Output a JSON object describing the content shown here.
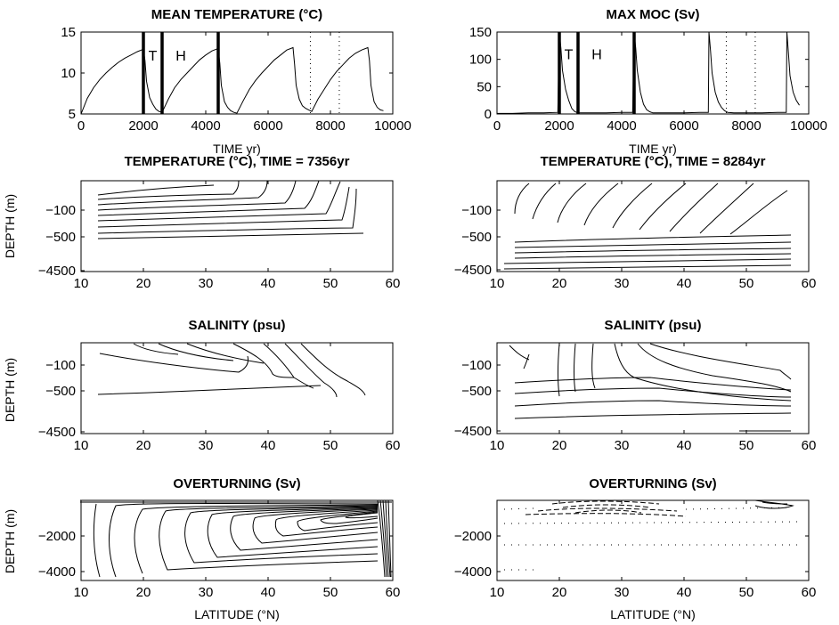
{
  "figure": {
    "colors": {
      "ink": "#000000",
      "background": "#ffffff"
    }
  },
  "chart_data": [
    {
      "id": "mean_temperature",
      "type": "line",
      "title": "MEAN TEMPERATURE (°C)",
      "xlabel": "TIME yr)",
      "ylabel": "",
      "xlim": [
        0,
        10000
      ],
      "ylim": [
        5,
        15
      ],
      "xticks": [
        0,
        2000,
        4000,
        6000,
        8000,
        10000
      ],
      "yticks": [
        5,
        10,
        15
      ],
      "grid": false,
      "series": [
        {
          "x": [
            0,
            200,
            400,
            600,
            800,
            1000,
            1200,
            1400,
            1600,
            1800,
            2000,
            2050,
            2100,
            2200,
            2300,
            2400,
            2500,
            2600,
            2800,
            3000,
            3200,
            3400,
            3600,
            3800,
            4000,
            4200,
            4400,
            4450,
            4500,
            4600,
            4700,
            4800,
            4900,
            5000,
            5200,
            5400,
            5600,
            5800,
            6000,
            6200,
            6400,
            6600,
            6800,
            6850,
            6900,
            7000,
            7100,
            7200,
            7300,
            7400,
            7600,
            7800,
            8000,
            8200,
            8400,
            8600,
            8800,
            9000,
            9200,
            9250,
            9300,
            9400,
            9500,
            9600,
            9700
          ],
          "values": [
            5.0,
            6.9,
            8.2,
            9.2,
            10.0,
            10.7,
            11.3,
            11.8,
            12.2,
            12.6,
            12.9,
            11.5,
            9.0,
            7.0,
            6.2,
            5.6,
            5.3,
            5.2,
            6.8,
            8.2,
            9.2,
            10.0,
            10.8,
            11.6,
            12.2,
            12.7,
            13.0,
            11.2,
            8.5,
            6.5,
            5.8,
            5.4,
            5.2,
            5.1,
            6.6,
            8.0,
            9.1,
            10.0,
            10.8,
            11.6,
            12.2,
            12.8,
            13.1,
            11.0,
            8.5,
            6.8,
            6.0,
            5.7,
            5.5,
            5.3,
            6.8,
            8.0,
            9.2,
            10.2,
            11.0,
            11.8,
            12.4,
            12.8,
            13.1,
            11.5,
            8.5,
            6.5,
            5.8,
            5.5,
            5.4
          ]
        }
      ],
      "markers": [
        {
          "x": 2000,
          "style": "thick"
        },
        {
          "x": 2600,
          "style": "thick"
        },
        {
          "x": 4400,
          "style": "thick"
        },
        {
          "x": 7356,
          "style": "dotted"
        },
        {
          "x": 8284,
          "style": "dotted"
        }
      ],
      "annotations": [
        {
          "text": "T",
          "x": 2300,
          "y": 12.2
        },
        {
          "text": "H",
          "x": 3200,
          "y": 12.2
        }
      ]
    },
    {
      "id": "max_moc",
      "type": "line",
      "title": "MAX MOC (Sv)",
      "xlabel": "TIME yr)",
      "ylabel": "",
      "xlim": [
        0,
        10000
      ],
      "ylim": [
        0,
        150
      ],
      "xticks": [
        0,
        2000,
        4000,
        6000,
        8000,
        10000
      ],
      "yticks": [
        0,
        50,
        100,
        150
      ],
      "grid": false,
      "series": [
        {
          "x": [
            0,
            500,
            1000,
            1500,
            1950,
            2000,
            2050,
            2100,
            2200,
            2300,
            2400,
            2500,
            2600,
            3000,
            3500,
            4000,
            4350,
            4400,
            4450,
            4500,
            4600,
            4700,
            4800,
            4900,
            5000,
            5500,
            6000,
            6500,
            6780,
            6800,
            6850,
            6900,
            7000,
            7100,
            7200,
            7300,
            7400,
            7600,
            8000,
            8500,
            9000,
            9280,
            9300,
            9350,
            9400,
            9500,
            9600,
            9700
          ],
          "values": [
            1,
            1,
            2,
            2,
            3,
            150,
            120,
            80,
            45,
            25,
            10,
            4,
            2,
            2,
            2,
            3,
            3,
            150,
            120,
            80,
            40,
            18,
            8,
            4,
            2,
            2,
            2,
            3,
            3,
            150,
            115,
            75,
            40,
            22,
            12,
            6,
            3,
            2,
            2,
            2,
            3,
            3,
            150,
            110,
            70,
            40,
            25,
            16
          ]
        }
      ],
      "markers": [
        {
          "x": 2000,
          "style": "thick"
        },
        {
          "x": 2600,
          "style": "thick"
        },
        {
          "x": 4400,
          "style": "thick"
        },
        {
          "x": 7356,
          "style": "dotted"
        },
        {
          "x": 8284,
          "style": "dotted"
        }
      ],
      "annotations": [
        {
          "text": "T",
          "x": 2300,
          "y": 110
        },
        {
          "text": "H",
          "x": 3200,
          "y": 110
        }
      ]
    },
    {
      "id": "temperature_7356",
      "type": "contour",
      "title": "TEMPERATURE (°C), TIME = 7356yr",
      "xlabel": "",
      "ylabel": "DEPTH (m)",
      "xlim": [
        10,
        60
      ],
      "xticks": [
        10,
        20,
        30,
        40,
        50,
        60
      ],
      "ytick_labels": [
        "-100",
        "-500",
        "-4500"
      ],
      "grid": false
    },
    {
      "id": "temperature_8284",
      "type": "contour",
      "title": "TEMPERATURE (°C), TIME = 8284yr",
      "xlabel": "",
      "ylabel": "",
      "xlim": [
        10,
        60
      ],
      "xticks": [
        10,
        20,
        30,
        40,
        50,
        60
      ],
      "ytick_labels": [
        "-100",
        "-500",
        "-4500"
      ],
      "grid": false
    },
    {
      "id": "salinity_7356",
      "type": "contour",
      "title": "SALINITY (psu)",
      "xlabel": "",
      "ylabel": "DEPTH (m)",
      "xlim": [
        10,
        60
      ],
      "xticks": [
        10,
        20,
        30,
        40,
        50,
        60
      ],
      "ytick_labels": [
        "-100",
        "-500",
        "-4500"
      ],
      "grid": false
    },
    {
      "id": "salinity_8284",
      "type": "contour",
      "title": "SALINITY (psu)",
      "xlabel": "",
      "ylabel": "",
      "xlim": [
        10,
        60
      ],
      "xticks": [
        10,
        20,
        30,
        40,
        50,
        60
      ],
      "ytick_labels": [
        "-100",
        "-500",
        "-4500"
      ],
      "grid": false
    },
    {
      "id": "overturning_7356",
      "type": "contour",
      "title": "OVERTURNING (Sv)",
      "xlabel": "LATITUDE (°N)",
      "ylabel": "DEPTH (m)",
      "xlim": [
        10,
        60
      ],
      "ylim": [
        -4500,
        0
      ],
      "xticks": [
        10,
        20,
        30,
        40,
        50,
        60
      ],
      "yticks": [
        -2000,
        -4000
      ],
      "grid": false
    },
    {
      "id": "overturning_8284",
      "type": "contour",
      "title": "OVERTURNING (Sv)",
      "xlabel": "LATITUDE (°N)",
      "ylabel": "",
      "xlim": [
        10,
        60
      ],
      "ylim": [
        -4500,
        0
      ],
      "xticks": [
        10,
        20,
        30,
        40,
        50,
        60
      ],
      "yticks": [
        -2000,
        -4000
      ],
      "grid": false
    }
  ]
}
